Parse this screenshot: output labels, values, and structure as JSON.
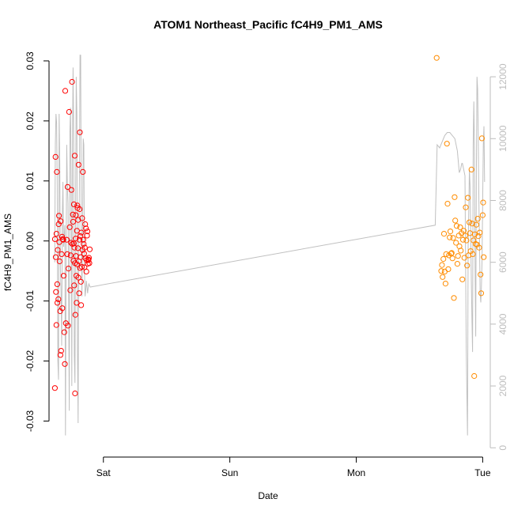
{
  "chart_data": {
    "type": "scatter",
    "title": "ATOM1 Northeast_Pacific fC4H9_PM1_AMS",
    "xlabel": "Date",
    "ylabel": "fC4H9_PM1_AMS",
    "x_ticks": [
      "Sat",
      "Sun",
      "Mon",
      "Tue"
    ],
    "y_ticks": [
      "-0.03",
      "-0.02",
      "-0.01",
      "0.00",
      "0.01",
      "0.02",
      "0.03"
    ],
    "y2_ticks": [
      "0",
      "2000",
      "4000",
      "6000",
      "8000",
      "10000",
      "12000"
    ],
    "xlim": [
      -0.43,
      3.06
    ],
    "ylim": [
      -0.036,
      0.0325
    ],
    "y2lim": [
      -300,
      13000
    ],
    "grid": false,
    "colors": {
      "series1": "#ff0000",
      "series2": "#ff8c00",
      "altitude": "#c0c0c0",
      "axis": "#000000",
      "right_axis": "#bdbdbd"
    },
    "series": [
      {
        "color": "#ff0000",
        "x": [
          -0.384,
          -0.383,
          -0.379,
          -0.377,
          -0.375,
          -0.372,
          -0.371,
          -0.368,
          -0.365,
          -0.364,
          -0.361,
          -0.356,
          -0.354,
          -0.351,
          -0.349,
          -0.346,
          -0.342,
          -0.34,
          -0.338,
          -0.334,
          -0.33,
          -0.327,
          -0.325,
          -0.322,
          -0.318,
          -0.314,
          -0.309,
          -0.305,
          -0.302,
          -0.297,
          -0.29,
          -0.286,
          -0.283,
          -0.28,
          -0.276,
          -0.271,
          -0.266,
          -0.262,
          -0.259,
          -0.256,
          -0.253,
          -0.248,
          -0.245,
          -0.241,
          -0.239,
          -0.236,
          -0.234,
          -0.233,
          -0.231,
          -0.229,
          -0.227,
          -0.225,
          -0.224,
          -0.222,
          -0.219,
          -0.218,
          -0.216,
          -0.214,
          -0.212,
          -0.209,
          -0.208,
          -0.206,
          -0.204,
          -0.202,
          -0.2,
          -0.198,
          -0.196,
          -0.194,
          -0.192,
          -0.19,
          -0.188,
          -0.186,
          -0.184,
          -0.182,
          -0.18,
          -0.178,
          -0.176,
          -0.174,
          -0.171,
          -0.168,
          -0.165,
          -0.162,
          -0.159,
          -0.156,
          -0.153,
          -0.15,
          -0.147,
          -0.144,
          -0.141,
          -0.138,
          -0.135,
          -0.132,
          -0.129,
          -0.126,
          -0.123,
          -0.12,
          -0.117,
          -0.114,
          -0.111,
          -0.108
        ],
        "y": [
          -0.0245,
          0.0003,
          0.014,
          -0.0027,
          -0.0085,
          -0.014,
          0.0012,
          0.0115,
          -0.0072,
          -0.0103,
          -0.0015,
          -0.0097,
          0.0028,
          0.0042,
          -0.0002,
          -0.0034,
          -0.0117,
          -0.019,
          0.0033,
          -0.0183,
          -0.0022,
          0.0007,
          -0.0112,
          0.0003,
          0.0002,
          -0.0058,
          -0.0152,
          -0.0205,
          0.025,
          -0.0137,
          0.0002,
          -0.0022,
          0.009,
          -0.0141,
          -0.0046,
          0.0215,
          0.0023,
          -0.0082,
          -0.0024,
          -0.0003,
          0.0085,
          0.0265,
          -0.0005,
          0.0044,
          0.0032,
          -0.0033,
          -0.0004,
          0.0061,
          -0.0074,
          -0.0011,
          0.0142,
          -0.0037,
          -0.0254,
          -0.0123,
          0.0004,
          0.0043,
          -0.0025,
          -0.0058,
          -0.0103,
          0.0017,
          -0.0039,
          0.0059,
          0.0055,
          -0.0012,
          0.0035,
          -0.0061,
          0.0127,
          -0.0034,
          -0.0087,
          0.0002,
          0.0053,
          0.0181,
          -0.0045,
          0.0008,
          -0.0027,
          -0.0068,
          -0.0107,
          0.0014,
          -0.0043,
          0.0038,
          -0.0015,
          0.0115,
          0.0002,
          -0.0005,
          -0.0021,
          -0.0044,
          -0.0011,
          0.0028,
          -0.0029,
          0.0021,
          -0.0051,
          -0.0032,
          0.0009,
          0.0016,
          -0.0038,
          -0.0032,
          -0.0031,
          -0.0028,
          -0.0037,
          -0.0014
        ]
      },
      {
        "color": "#ff8c00",
        "x": [
          2.636,
          2.672,
          2.678,
          2.683,
          2.689,
          2.694,
          2.7,
          2.706,
          2.711,
          2.717,
          2.722,
          2.728,
          2.733,
          2.739,
          2.744,
          2.75,
          2.755,
          2.761,
          2.766,
          2.772,
          2.778,
          2.783,
          2.789,
          2.794,
          2.8,
          2.805,
          2.811,
          2.816,
          2.822,
          2.827,
          2.833,
          2.839,
          2.844,
          2.85,
          2.855,
          2.861,
          2.866,
          2.872,
          2.877,
          2.883,
          2.888,
          2.894,
          2.9,
          2.905,
          2.911,
          2.916,
          2.922,
          2.927,
          2.933,
          2.938,
          2.944,
          2.95,
          2.955,
          2.961,
          2.966,
          2.972,
          2.977,
          2.983,
          2.988,
          2.994,
          3.0,
          3.004,
          3.008
        ],
        "y": [
          0.0305,
          -0.005,
          -0.004,
          -0.006,
          -0.003,
          0.0012,
          -0.0051,
          -0.0071,
          -0.0022,
          0.0162,
          0.0062,
          -0.0047,
          -0.0024,
          0.0006,
          0.0016,
          -0.0021,
          -0.002,
          -0.0029,
          0.0005,
          -0.0095,
          0.0073,
          0.0034,
          -0.0003,
          0.0025,
          -0.0038,
          -0.0025,
          0.0009,
          -0.0009,
          0.0023,
          -0.0016,
          0.0013,
          -0.0064,
          0.0002,
          0.0017,
          -0.0028,
          0.0009,
          0.0056,
          0.0001,
          -0.0041,
          0.0072,
          -0.0024,
          0.0031,
          0.0013,
          -0.0017,
          0.0119,
          0.0029,
          -0.0022,
          0.0001,
          -0.0225,
          0.0011,
          -0.0005,
          0.0027,
          -0.0006,
          0.0037,
          0.0008,
          -0.0011,
          0.0014,
          -0.0056,
          -0.0087,
          0.0171,
          0.0043,
          0.0064,
          -0.0027
        ]
      },
      {
        "name": "altitude",
        "color": "#c0c0c0",
        "type": "line",
        "axis": "right",
        "x": [
          -0.385,
          -0.38,
          -0.375,
          -0.37,
          -0.365,
          -0.36,
          -0.355,
          -0.35,
          -0.345,
          -0.34,
          -0.335,
          -0.33,
          -0.325,
          -0.32,
          -0.315,
          -0.31,
          -0.305,
          -0.3,
          -0.295,
          -0.29,
          -0.285,
          -0.28,
          -0.275,
          -0.27,
          -0.265,
          -0.26,
          -0.255,
          -0.25,
          -0.245,
          -0.24,
          -0.235,
          -0.23,
          -0.225,
          -0.22,
          -0.215,
          -0.21,
          -0.205,
          -0.2,
          -0.195,
          -0.19,
          -0.185,
          -0.18,
          -0.175,
          -0.17,
          -0.165,
          -0.16,
          -0.155,
          -0.15,
          -0.145,
          -0.14,
          -0.135,
          -0.13,
          -0.125,
          -0.12,
          -0.115,
          -0.11,
          -0.105,
          2.625,
          2.64,
          2.66,
          2.68,
          2.7,
          2.72,
          2.74,
          2.76,
          2.78,
          2.8,
          2.815,
          2.825,
          2.835,
          2.84,
          2.85,
          2.86,
          2.87,
          2.875,
          2.88,
          2.885,
          2.89,
          2.895,
          2.9,
          2.905,
          2.91,
          2.915,
          2.92,
          2.925,
          2.93,
          2.935,
          2.94,
          2.945,
          2.95,
          2.955,
          2.96,
          2.965,
          2.97,
          2.975,
          2.98,
          2.985,
          2.99,
          2.995,
          3.0,
          3.005,
          3.01,
          3.015
        ],
        "y": [
          6000,
          9800,
          10800,
          10500,
          8500,
          2800,
          2200,
          10800,
          9200,
          5800,
          5000,
          3300,
          7400,
          8600,
          6500,
          6800,
          7200,
          400,
          6100,
          9800,
          8500,
          7900,
          4700,
          1200,
          10200,
          11000,
          8300,
          2000,
          9600,
          12300,
          10000,
          3000,
          2100,
          7900,
          12000,
          10800,
          3200,
          800,
          6400,
          8500,
          12700,
          12700,
          7100,
          4900,
          6900,
          10000,
          9800,
          5700,
          4900,
          5100,
          5400,
          5200,
          5000,
          5200,
          5300,
          5250,
          5200,
          7200,
          9800,
          9700,
          9900,
          10100,
          10200,
          10200,
          10100,
          10000,
          9600,
          8900,
          9000,
          9200,
          9200,
          9000,
          8800,
          3200,
          1800,
          400,
          6500,
          7700,
          9000,
          8500,
          7000,
          5500,
          4200,
          3100,
          9800,
          11200,
          9600,
          5800,
          3600,
          8800,
          12000,
          11600,
          10000,
          8000,
          6600,
          5000,
          4700,
          5200,
          6100,
          8000,
          9800,
          10400,
          8600
        ]
      }
    ]
  }
}
